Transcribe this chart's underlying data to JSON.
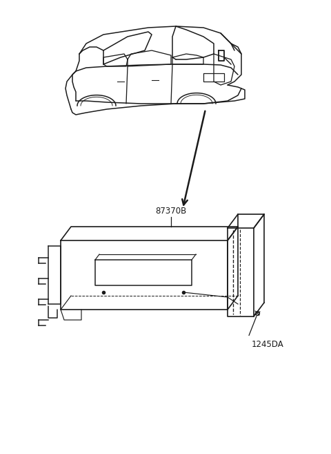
{
  "background_color": "#ffffff",
  "line_color": "#1a1a1a",
  "text_color": "#1a1a1a",
  "label_fontsize": 8.5,
  "figsize": [
    4.8,
    6.57
  ],
  "dpi": 100,
  "label_87370B": "87370B",
  "label_1245DA": "1245DA"
}
